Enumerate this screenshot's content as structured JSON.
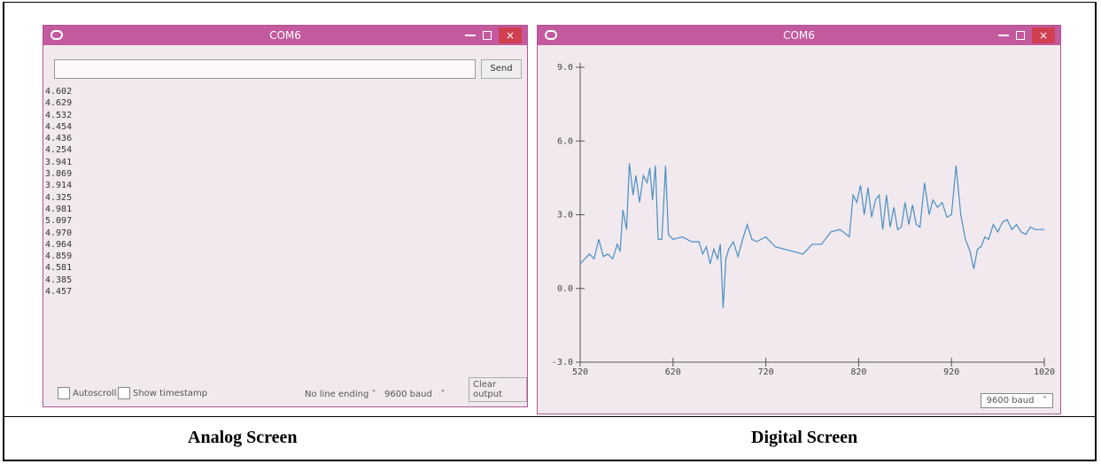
{
  "monitor": {
    "title": "COM6",
    "send": "Send",
    "lines": [
      "4.602",
      "4.629",
      "4.532",
      "4.454",
      "4.436",
      "4.254",
      "3.941",
      "3.869",
      "3.914",
      "4.325",
      "4.981",
      "5.097",
      "4.970",
      "4.964",
      "4.859",
      "4.581",
      "4.385",
      "4.457"
    ],
    "autoscroll": "Autoscroll",
    "timestamp": "Show timestamp",
    "line_ending": "No line ending",
    "baud": "9600 baud",
    "clear": "Clear output",
    "caption": "Analog Screen"
  },
  "plotter": {
    "title": "COM6",
    "type": "line",
    "color": "#4a8fc4",
    "x": [
      520,
      525,
      530,
      535,
      540,
      545,
      550,
      555,
      560,
      563,
      566,
      570,
      573,
      577,
      580,
      584,
      588,
      592,
      595,
      598,
      601,
      604,
      608,
      612,
      615,
      620,
      630,
      640,
      648,
      652,
      656,
      660,
      664,
      668,
      671,
      674,
      677,
      680,
      685,
      690,
      695,
      700,
      705,
      710,
      720,
      730,
      740,
      750,
      760,
      770,
      780,
      790,
      800,
      810,
      814,
      818,
      822,
      826,
      830,
      834,
      838,
      842,
      846,
      850,
      854,
      858,
      862,
      866,
      870,
      874,
      878,
      882,
      886,
      891,
      896,
      900,
      905,
      910,
      915,
      920,
      925,
      930,
      935,
      940,
      944,
      948,
      952,
      956,
      960,
      965,
      970,
      975,
      980,
      985,
      990,
      995,
      1000,
      1005,
      1010,
      1015,
      1020
    ],
    "values": [
      1.0,
      1.2,
      1.4,
      1.2,
      2.0,
      1.3,
      1.4,
      1.2,
      1.8,
      1.5,
      3.2,
      2.4,
      5.1,
      3.8,
      4.6,
      3.5,
      4.6,
      4.3,
      4.9,
      3.6,
      5.0,
      2.0,
      2.0,
      5.0,
      2.2,
      2.0,
      2.1,
      1.9,
      1.9,
      1.4,
      1.7,
      1.0,
      1.6,
      1.2,
      1.8,
      -0.8,
      1.2,
      1.6,
      1.9,
      1.3,
      2.0,
      2.6,
      2.0,
      1.9,
      2.1,
      1.7,
      1.6,
      1.5,
      1.4,
      1.8,
      1.8,
      2.3,
      2.4,
      2.1,
      3.8,
      3.5,
      4.2,
      3.0,
      4.1,
      2.9,
      3.6,
      3.8,
      2.4,
      3.8,
      2.5,
      3.3,
      2.4,
      2.5,
      3.5,
      2.6,
      3.4,
      2.6,
      2.5,
      4.3,
      3.0,
      3.6,
      3.3,
      3.5,
      2.9,
      3.0,
      5.0,
      3.0,
      2.0,
      1.5,
      0.8,
      1.6,
      1.7,
      2.1,
      2.0,
      2.6,
      2.3,
      2.7,
      2.8,
      2.4,
      2.6,
      2.3,
      2.2,
      2.5,
      2.4,
      2.4,
      2.4
    ],
    "xlim": [
      520,
      1020
    ],
    "xticks": [
      520,
      620,
      720,
      820,
      920,
      1020
    ],
    "ylim": [
      -3,
      9
    ],
    "yticks": [
      {
        "value": -3,
        "label": "-3.0"
      },
      {
        "value": 0,
        "label": "0.0"
      },
      {
        "value": 3,
        "label": "3.0"
      },
      {
        "value": 6,
        "label": "6.0"
      },
      {
        "value": 9,
        "label": "9.0"
      }
    ],
    "baud": "9600 baud",
    "caption": "Digital Screen"
  }
}
